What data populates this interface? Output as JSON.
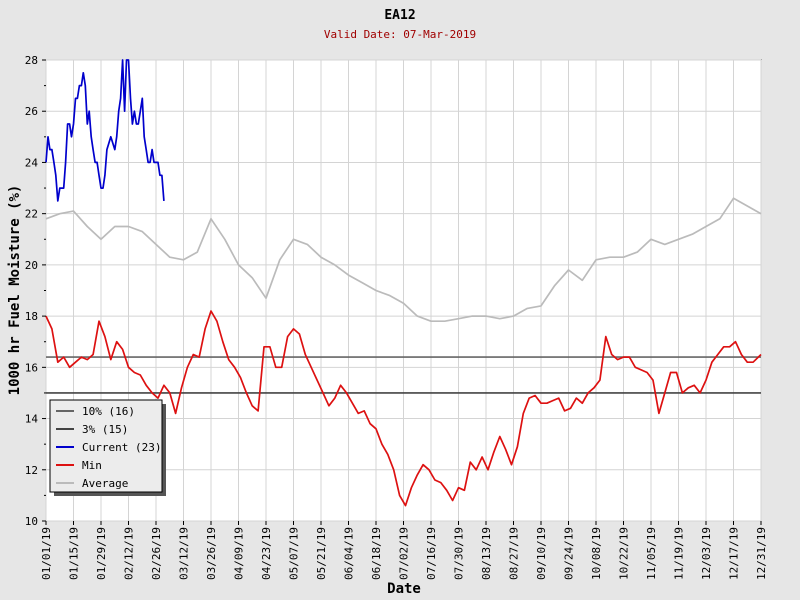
{
  "chart_data": {
    "type": "line",
    "title": "EA12",
    "subtitle": "Valid Date: 07-Mar-2019",
    "xlabel": "Date",
    "ylabel": "1000 hr Fuel Moisture (%)",
    "xlim": [
      "2019-01-01",
      "2019-12-31"
    ],
    "ylim": [
      10,
      28
    ],
    "yticks": [
      10,
      12,
      14,
      16,
      18,
      20,
      22,
      24,
      26,
      28
    ],
    "xticks": [
      "01/01/19",
      "01/15/19",
      "01/29/19",
      "02/12/19",
      "02/26/19",
      "03/12/19",
      "03/26/19",
      "04/09/19",
      "04/23/19",
      "05/07/19",
      "05/21/19",
      "06/04/19",
      "06/18/19",
      "07/02/19",
      "07/16/19",
      "07/30/19",
      "08/13/19",
      "08/27/19",
      "09/10/19",
      "09/24/19",
      "10/08/19",
      "10/22/19",
      "11/05/19",
      "11/19/19",
      "12/03/19",
      "12/17/19",
      "12/31/19"
    ],
    "grid": true,
    "legend": {
      "position": "bottom-left",
      "entries": [
        {
          "label": "10% (16)",
          "color": "#666666"
        },
        {
          "label": "3% (15)",
          "color": "#444444"
        },
        {
          "label": "Current (23)",
          "color": "#0000cc"
        },
        {
          "label": "Min",
          "color": "#dd1111"
        },
        {
          "label": "Average",
          "color": "#bbbbbb"
        }
      ]
    },
    "thresholds": [
      {
        "name": "10% (16)",
        "value": 16.4,
        "color": "#666666"
      },
      {
        "name": "3% (15)",
        "value": 15.0,
        "color": "#444444"
      }
    ],
    "series": [
      {
        "name": "Current (23)",
        "color": "#0000cc",
        "x": [
          "2019-01-01",
          "2019-01-02",
          "2019-01-03",
          "2019-01-04",
          "2019-01-05",
          "2019-01-06",
          "2019-01-07",
          "2019-01-08",
          "2019-01-09",
          "2019-01-10",
          "2019-01-11",
          "2019-01-12",
          "2019-01-13",
          "2019-01-14",
          "2019-01-15",
          "2019-01-16",
          "2019-01-17",
          "2019-01-18",
          "2019-01-19",
          "2019-01-20",
          "2019-01-21",
          "2019-01-22",
          "2019-01-23",
          "2019-01-24",
          "2019-01-25",
          "2019-01-26",
          "2019-01-27",
          "2019-01-28",
          "2019-01-29",
          "2019-01-30",
          "2019-01-31",
          "2019-02-01",
          "2019-02-03",
          "2019-02-05",
          "2019-02-06",
          "2019-02-07",
          "2019-02-08",
          "2019-02-09",
          "2019-02-10",
          "2019-02-11",
          "2019-02-12",
          "2019-02-13",
          "2019-02-14",
          "2019-02-15",
          "2019-02-16",
          "2019-02-17",
          "2019-02-18",
          "2019-02-19",
          "2019-02-20",
          "2019-02-21",
          "2019-02-22",
          "2019-02-23",
          "2019-02-24",
          "2019-02-25",
          "2019-02-26",
          "2019-02-27",
          "2019-02-28",
          "2019-03-01",
          "2019-03-02",
          "2019-03-03",
          "2019-03-04",
          "2019-03-05",
          "2019-03-06",
          "2019-03-07"
        ],
        "y": [
          24.0,
          25.0,
          24.5,
          24.5,
          24.0,
          23.5,
          22.5,
          23.0,
          23.0,
          23.0,
          24.0,
          25.5,
          25.5,
          25.0,
          25.5,
          26.5,
          26.5,
          27.0,
          27.0,
          27.5,
          27.0,
          25.5,
          26.0,
          25.0,
          24.5,
          24.0,
          24.0,
          23.5,
          23.0,
          23.0,
          23.5,
          24.5,
          25.0,
          24.5,
          25.0,
          26.0,
          26.5,
          28.0,
          26.0,
          28.0,
          28.0,
          26.5,
          25.5,
          26.0,
          25.5,
          25.5,
          26.0,
          26.5,
          25.0,
          24.5,
          24.0,
          24.0,
          24.5,
          24.0,
          24.0,
          24.0,
          23.5,
          23.5,
          22.5,
          null,
          null,
          null,
          null,
          null
        ]
      },
      {
        "name": "Min",
        "color": "#dd1111",
        "x": [
          "2019-01-01",
          "2019-01-04",
          "2019-01-07",
          "2019-01-10",
          "2019-01-13",
          "2019-01-16",
          "2019-01-19",
          "2019-01-22",
          "2019-01-25",
          "2019-01-28",
          "2019-01-31",
          "2019-02-03",
          "2019-02-06",
          "2019-02-09",
          "2019-02-12",
          "2019-02-15",
          "2019-02-18",
          "2019-02-21",
          "2019-02-24",
          "2019-02-27",
          "2019-03-02",
          "2019-03-05",
          "2019-03-08",
          "2019-03-11",
          "2019-03-14",
          "2019-03-17",
          "2019-03-20",
          "2019-03-23",
          "2019-03-26",
          "2019-03-29",
          "2019-04-01",
          "2019-04-04",
          "2019-04-07",
          "2019-04-10",
          "2019-04-13",
          "2019-04-16",
          "2019-04-19",
          "2019-04-22",
          "2019-04-25",
          "2019-04-28",
          "2019-05-01",
          "2019-05-04",
          "2019-05-07",
          "2019-05-10",
          "2019-05-13",
          "2019-05-16",
          "2019-05-19",
          "2019-05-22",
          "2019-05-25",
          "2019-05-28",
          "2019-05-31",
          "2019-06-03",
          "2019-06-06",
          "2019-06-09",
          "2019-06-12",
          "2019-06-15",
          "2019-06-18",
          "2019-06-21",
          "2019-06-24",
          "2019-06-27",
          "2019-06-30",
          "2019-07-03",
          "2019-07-06",
          "2019-07-09",
          "2019-07-12",
          "2019-07-15",
          "2019-07-18",
          "2019-07-21",
          "2019-07-24",
          "2019-07-27",
          "2019-07-30",
          "2019-08-02",
          "2019-08-05",
          "2019-08-08",
          "2019-08-11",
          "2019-08-14",
          "2019-08-17",
          "2019-08-20",
          "2019-08-23",
          "2019-08-26",
          "2019-08-29",
          "2019-09-01",
          "2019-09-04",
          "2019-09-07",
          "2019-09-10",
          "2019-09-13",
          "2019-09-16",
          "2019-09-19",
          "2019-09-22",
          "2019-09-25",
          "2019-09-28",
          "2019-10-01",
          "2019-10-04",
          "2019-10-07",
          "2019-10-10",
          "2019-10-13",
          "2019-10-16",
          "2019-10-19",
          "2019-10-22",
          "2019-10-25",
          "2019-10-28",
          "2019-10-31",
          "2019-11-03",
          "2019-11-06",
          "2019-11-09",
          "2019-11-12",
          "2019-11-15",
          "2019-11-18",
          "2019-11-21",
          "2019-11-24",
          "2019-11-27",
          "2019-11-30",
          "2019-12-03",
          "2019-12-06",
          "2019-12-09",
          "2019-12-12",
          "2019-12-15",
          "2019-12-18",
          "2019-12-21",
          "2019-12-24",
          "2019-12-27",
          "2019-12-31"
        ],
        "y": [
          18.0,
          17.5,
          16.2,
          16.4,
          16.0,
          16.2,
          16.4,
          16.3,
          16.5,
          17.8,
          17.2,
          16.3,
          17.0,
          16.7,
          16.0,
          15.8,
          15.7,
          15.3,
          15.0,
          14.8,
          15.3,
          15.0,
          14.2,
          15.2,
          16.0,
          16.5,
          16.4,
          17.5,
          18.2,
          17.8,
          17.0,
          16.3,
          16.0,
          15.6,
          15.0,
          14.5,
          14.3,
          16.8,
          16.8,
          16.0,
          16.0,
          17.2,
          17.5,
          17.3,
          16.5,
          16.0,
          15.5,
          15.0,
          14.5,
          14.8,
          15.3,
          15.0,
          14.6,
          14.2,
          14.3,
          13.8,
          13.6,
          13.0,
          12.6,
          12.0,
          11.0,
          10.6,
          11.3,
          11.8,
          12.2,
          12.0,
          11.6,
          11.5,
          11.2,
          10.8,
          11.3,
          11.2,
          12.3,
          12.0,
          12.5,
          12.0,
          12.7,
          13.3,
          12.8,
          12.2,
          12.9,
          14.2,
          14.8,
          14.9,
          14.6,
          14.6,
          14.7,
          14.8,
          14.3,
          14.4,
          14.8,
          14.6,
          15.0,
          15.2,
          15.5,
          17.2,
          16.5,
          16.3,
          16.4,
          16.4,
          16.0,
          15.9,
          15.8,
          15.5,
          14.2,
          15.0,
          15.8,
          15.8,
          15.0,
          15.2,
          15.3,
          15.0,
          15.5,
          16.2,
          16.5,
          16.8,
          16.8,
          17.0,
          16.5,
          16.2,
          16.2,
          16.5
        ]
      },
      {
        "name": "Average",
        "color": "#bbbbbb",
        "x": [
          "2019-01-01",
          "2019-01-08",
          "2019-01-15",
          "2019-01-22",
          "2019-01-29",
          "2019-02-05",
          "2019-02-12",
          "2019-02-19",
          "2019-02-26",
          "2019-03-05",
          "2019-03-12",
          "2019-03-19",
          "2019-03-26",
          "2019-04-02",
          "2019-04-09",
          "2019-04-16",
          "2019-04-23",
          "2019-04-30",
          "2019-05-07",
          "2019-05-14",
          "2019-05-21",
          "2019-05-28",
          "2019-06-04",
          "2019-06-11",
          "2019-06-18",
          "2019-06-25",
          "2019-07-02",
          "2019-07-09",
          "2019-07-16",
          "2019-07-23",
          "2019-07-30",
          "2019-08-06",
          "2019-08-13",
          "2019-08-20",
          "2019-08-27",
          "2019-09-03",
          "2019-09-10",
          "2019-09-17",
          "2019-09-24",
          "2019-10-01",
          "2019-10-08",
          "2019-10-15",
          "2019-10-22",
          "2019-10-29",
          "2019-11-05",
          "2019-11-12",
          "2019-11-19",
          "2019-11-26",
          "2019-12-03",
          "2019-12-10",
          "2019-12-17",
          "2019-12-24",
          "2019-12-31"
        ],
        "y": [
          21.8,
          22.0,
          22.1,
          21.5,
          21.0,
          21.5,
          21.5,
          21.3,
          20.8,
          20.3,
          20.2,
          20.5,
          21.8,
          21.0,
          20.0,
          19.5,
          18.7,
          20.2,
          21.0,
          20.8,
          20.3,
          20.0,
          19.6,
          19.3,
          19.0,
          18.8,
          18.5,
          18.0,
          17.8,
          17.8,
          17.9,
          18.0,
          18.0,
          17.9,
          18.0,
          18.3,
          18.4,
          19.2,
          19.8,
          19.4,
          20.2,
          20.3,
          20.3,
          20.5,
          21.0,
          20.8,
          21.0,
          21.2,
          21.5,
          21.8,
          22.6,
          22.3,
          22.0
        ]
      }
    ]
  }
}
